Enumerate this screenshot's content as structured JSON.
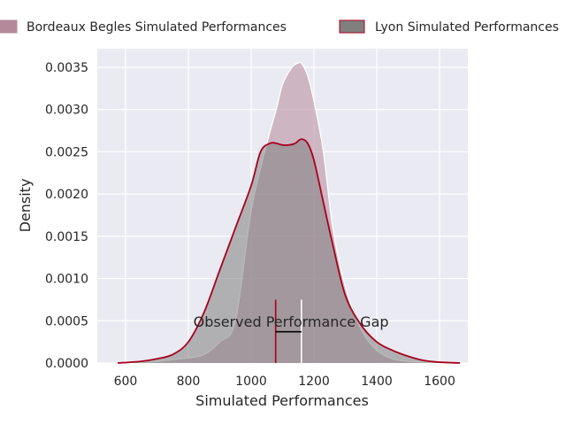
{
  "chart_data": {
    "type": "area",
    "title": "",
    "xlabel": "Simulated Performances",
    "ylabel": "Density",
    "xlim": [
      510,
      1690
    ],
    "ylim": [
      0,
      0.00372
    ],
    "x_ticks": [
      600,
      800,
      1000,
      1200,
      1400,
      1600
    ],
    "x_tick_labels": [
      "600",
      "800",
      "1000",
      "1200",
      "1400",
      "1600"
    ],
    "y_ticks": [
      0,
      0.0005,
      0.001,
      0.0015,
      0.002,
      0.0025,
      0.003,
      0.0035
    ],
    "y_tick_labels": [
      "0.0000",
      "0.0005",
      "0.0010",
      "0.0015",
      "0.0020",
      "0.0025",
      "0.0030",
      "0.0035"
    ],
    "grid": true,
    "legend_position": "top",
    "colors": {
      "background": "#eaeaf2",
      "grid": "#ffffff",
      "bordeaux_fill": "#b48a9a",
      "lyon_fill": "#7f7f7f",
      "lyon_line": "#a8001c",
      "bordeaux_line": "#ffffff",
      "gap_line": "#000000"
    },
    "series": [
      {
        "name": "Bordeaux Begles Simulated Performances",
        "x": [
          575,
          650,
          700,
          750,
          800,
          850,
          900,
          950,
          1000,
          1050,
          1080,
          1100,
          1130,
          1150,
          1160,
          1180,
          1200,
          1230,
          1260,
          1300,
          1350,
          1400,
          1450,
          1500,
          1550,
          1600,
          1665
        ],
        "y": [
          0,
          1e-05,
          2e-05,
          4e-05,
          6e-05,
          0.0001,
          0.00025,
          0.0005,
          0.0018,
          0.0026,
          0.003,
          0.0033,
          0.0035,
          0.00355,
          0.00355,
          0.0034,
          0.0031,
          0.0025,
          0.0016,
          0.0009,
          0.0004,
          0.00015,
          5e-05,
          2e-05,
          1e-05,
          5e-06,
          0
        ]
      },
      {
        "name": "Lyon Simulated Performances",
        "x": [
          575,
          650,
          700,
          750,
          800,
          850,
          900,
          950,
          1000,
          1030,
          1060,
          1080,
          1100,
          1120,
          1140,
          1160,
          1180,
          1200,
          1230,
          1260,
          1300,
          1350,
          1400,
          1450,
          1500,
          1550,
          1600,
          1665
        ],
        "y": [
          0,
          2e-05,
          5e-05,
          0.0001,
          0.00025,
          0.0006,
          0.0011,
          0.0016,
          0.0021,
          0.0025,
          0.0026,
          0.0026,
          0.00258,
          0.00258,
          0.0026,
          0.00265,
          0.0026,
          0.0024,
          0.0019,
          0.0014,
          0.0008,
          0.00045,
          0.00025,
          0.00015,
          8e-05,
          3e-05,
          1e-05,
          0
        ]
      }
    ],
    "annotations": {
      "text": "Observed Performance Gap",
      "text_x": 1127,
      "text_y": 0.00043,
      "lyon_observed_x": 1078,
      "bordeaux_observed_x": 1160,
      "marker_top_y": 0.00075,
      "gap_line_y": 0.00037
    }
  }
}
